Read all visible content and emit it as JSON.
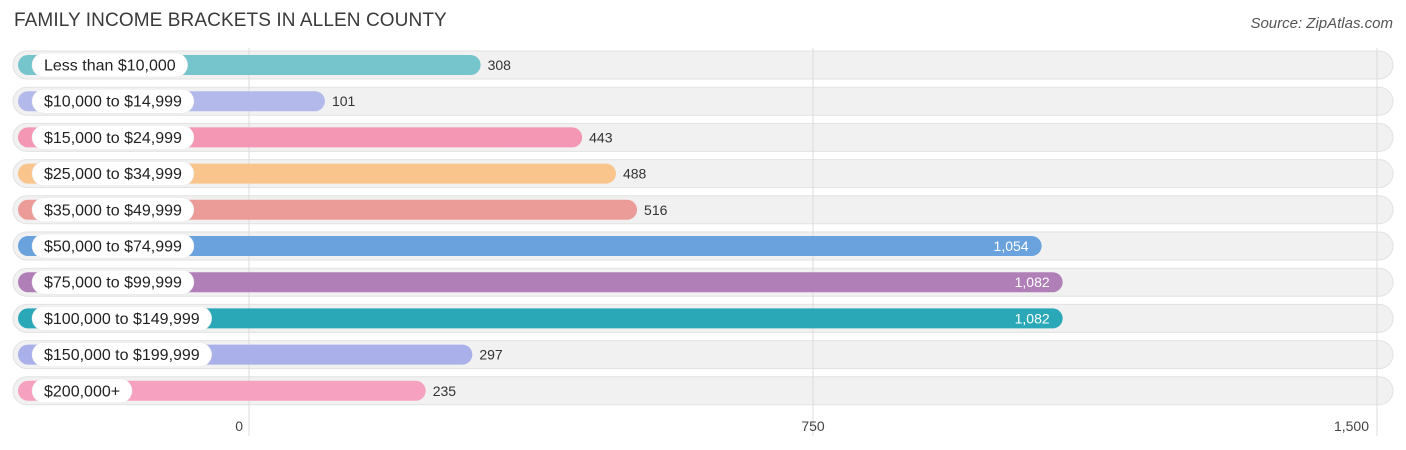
{
  "title": "FAMILY INCOME BRACKETS IN ALLEN COUNTY",
  "source": "Source: ZipAtlas.com",
  "chart_data": {
    "type": "bar",
    "orientation": "horizontal",
    "title": "FAMILY INCOME BRACKETS IN ALLEN COUNTY",
    "xlabel": "",
    "ylabel": "",
    "xlim": [
      0,
      1500
    ],
    "ticks": [
      0,
      750,
      1500
    ],
    "tick_labels": [
      "0",
      "750",
      "1,500"
    ],
    "grid": true,
    "categories": [
      "Less than $10,000",
      "$10,000 to $14,999",
      "$15,000 to $24,999",
      "$25,000 to $34,999",
      "$35,000 to $49,999",
      "$50,000 to $74,999",
      "$75,000 to $99,999",
      "$100,000 to $149,999",
      "$150,000 to $199,999",
      "$200,000+"
    ],
    "values": [
      308,
      101,
      443,
      488,
      516,
      1054,
      1082,
      1082,
      297,
      235
    ],
    "value_labels": [
      "308",
      "101",
      "443",
      "488",
      "516",
      "1,054",
      "1,082",
      "1,082",
      "297",
      "235"
    ],
    "colors": [
      "#76c5cd",
      "#b4b9ec",
      "#f497b4",
      "#f9c58d",
      "#eb9c98",
      "#6aa2de",
      "#b07fb8",
      "#2ba8b8",
      "#aab0ea",
      "#f6a1bf"
    ]
  }
}
